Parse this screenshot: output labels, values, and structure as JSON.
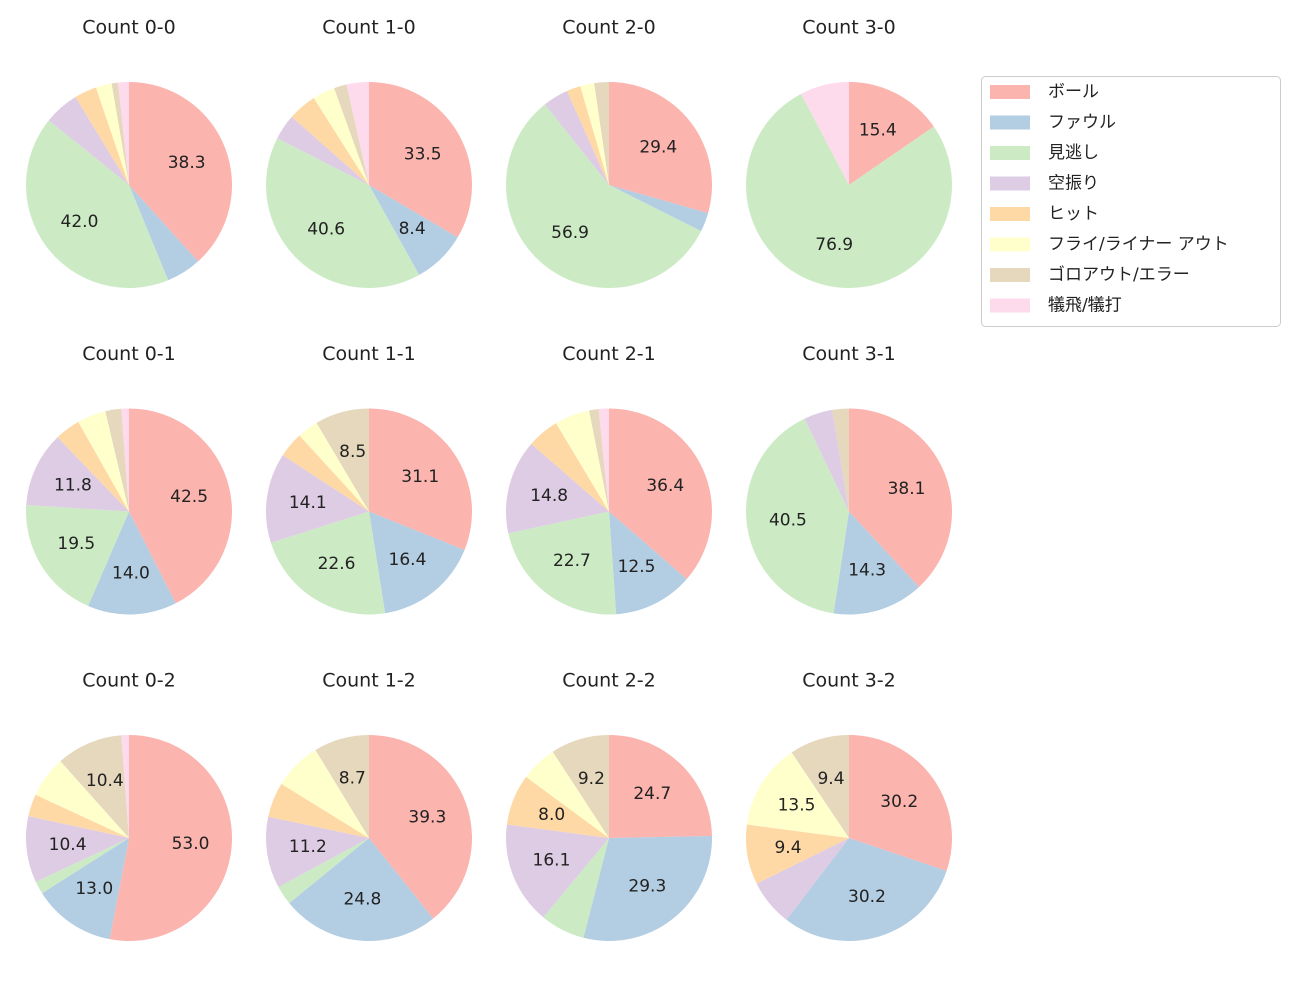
{
  "chart_data": [
    {
      "type": "pie",
      "title": "Count 0-0",
      "categories": [
        "ボール",
        "ファウル",
        "見逃し",
        "空振り",
        "ヒット",
        "フライ/ライナー アウト",
        "ゴロアウト/エラー",
        "犠飛/犠打"
      ],
      "colors": [
        "#fbb4ae",
        "#b3cde3",
        "#ccebc5",
        "#decbe4",
        "#fed9a6",
        "#ffffcc",
        "#e5d8bd",
        "#fddaec"
      ],
      "values": [
        38.3,
        5.5,
        42.0,
        5.5,
        3.5,
        2.5,
        1,
        1.7
      ],
      "value_labels": [
        "38.3",
        null,
        "42.0",
        null,
        null,
        null,
        null,
        null
      ]
    },
    {
      "type": "pie",
      "title": "Count 1-0",
      "categories": [
        "ボール",
        "ファウル",
        "見逃し",
        "空振り",
        "ヒット",
        "フライ/ライナー アウト",
        "ゴロアウト/エラー",
        "犠飛/犠打"
      ],
      "colors": [
        "#fbb4ae",
        "#b3cde3",
        "#ccebc5",
        "#decbe4",
        "#fed9a6",
        "#ffffcc",
        "#e5d8bd",
        "#fddaec"
      ],
      "values": [
        33.5,
        8.4,
        40.6,
        4,
        4.5,
        3.5,
        2,
        3.5
      ],
      "value_labels": [
        "33.5",
        "8.4",
        "40.6",
        null,
        null,
        null,
        null,
        null
      ]
    },
    {
      "type": "pie",
      "title": "Count 2-0",
      "categories": [
        "ボール",
        "ファウル",
        "見逃し",
        "空振り",
        "ヒット",
        "フライ/ライナー アウト",
        "ゴロアウト/エラー",
        "犠飛/犠打"
      ],
      "colors": [
        "#fbb4ae",
        "#b3cde3",
        "#ccebc5",
        "#decbe4",
        "#fed9a6",
        "#ffffcc",
        "#e5d8bd",
        "#fddaec"
      ],
      "values": [
        29.4,
        3,
        56.9,
        4,
        2.2,
        2.2,
        2.3,
        0
      ],
      "value_labels": [
        "29.4",
        null,
        "56.9",
        null,
        null,
        null,
        null,
        null
      ]
    },
    {
      "type": "pie",
      "title": "Count 3-0",
      "categories": [
        "ボール",
        "ファウル",
        "見逃し",
        "空振り",
        "ヒット",
        "フライ/ライナー アウト",
        "ゴロアウト/エラー",
        "犠飛/犠打"
      ],
      "colors": [
        "#fbb4ae",
        "#b3cde3",
        "#ccebc5",
        "#decbe4",
        "#fed9a6",
        "#ffffcc",
        "#e5d8bd",
        "#fddaec"
      ],
      "values": [
        15.4,
        0,
        76.9,
        0,
        0,
        0,
        0,
        7.7
      ],
      "value_labels": [
        "15.4",
        null,
        "76.9",
        null,
        null,
        null,
        null,
        null
      ]
    },
    {
      "type": "pie",
      "title": "Count 0-1",
      "categories": [
        "ボール",
        "ファウル",
        "見逃し",
        "空振り",
        "ヒット",
        "フライ/ライナー アウト",
        "ゴロアウト/エラー",
        "犠飛/犠打"
      ],
      "colors": [
        "#fbb4ae",
        "#b3cde3",
        "#ccebc5",
        "#decbe4",
        "#fed9a6",
        "#ffffcc",
        "#e5d8bd",
        "#fddaec"
      ],
      "values": [
        42.5,
        14.0,
        19.5,
        11.8,
        4,
        4.5,
        2.5,
        1.2
      ],
      "value_labels": [
        "42.5",
        "14.0",
        "19.5",
        "11.8",
        null,
        null,
        null,
        null
      ]
    },
    {
      "type": "pie",
      "title": "Count 1-1",
      "categories": [
        "ボール",
        "ファウル",
        "見逃し",
        "空振り",
        "ヒット",
        "フライ/ライナー アウト",
        "ゴロアウト/エラー",
        "犠飛/犠打"
      ],
      "colors": [
        "#fbb4ae",
        "#b3cde3",
        "#ccebc5",
        "#decbe4",
        "#fed9a6",
        "#ffffcc",
        "#e5d8bd",
        "#fddaec"
      ],
      "values": [
        31.1,
        16.4,
        22.6,
        14.1,
        4,
        3.3,
        8.5,
        0
      ],
      "value_labels": [
        "31.1",
        "16.4",
        "22.6",
        "14.1",
        null,
        null,
        "8.5",
        null
      ]
    },
    {
      "type": "pie",
      "title": "Count 2-1",
      "categories": [
        "ボール",
        "ファウル",
        "見逃し",
        "空振り",
        "ヒット",
        "フライ/ライナー アウト",
        "ゴロアウト/エラー",
        "犠飛/犠打"
      ],
      "colors": [
        "#fbb4ae",
        "#b3cde3",
        "#ccebc5",
        "#decbe4",
        "#fed9a6",
        "#ffffcc",
        "#e5d8bd",
        "#fddaec"
      ],
      "values": [
        36.4,
        12.5,
        22.7,
        14.8,
        5,
        5.5,
        1.5,
        1.6
      ],
      "value_labels": [
        "36.4",
        "12.5",
        "22.7",
        "14.8",
        null,
        null,
        null,
        null
      ]
    },
    {
      "type": "pie",
      "title": "Count 3-1",
      "categories": [
        "ボール",
        "ファウル",
        "見逃し",
        "空振り",
        "ヒット",
        "フライ/ライナー アウト",
        "ゴロアウト/エラー",
        "犠飛/犠打"
      ],
      "colors": [
        "#fbb4ae",
        "#b3cde3",
        "#ccebc5",
        "#decbe4",
        "#fed9a6",
        "#ffffcc",
        "#e5d8bd",
        "#fddaec"
      ],
      "values": [
        38.1,
        14.3,
        40.5,
        4.5,
        0,
        0,
        2.6,
        0
      ],
      "value_labels": [
        "38.1",
        "14.3",
        "40.5",
        null,
        null,
        null,
        null,
        null
      ]
    },
    {
      "type": "pie",
      "title": "Count 0-2",
      "categories": [
        "ボール",
        "ファウル",
        "見逃し",
        "空振り",
        "ヒット",
        "フライ/ライナー アウト",
        "ゴロアウト/エラー",
        "犠飛/犠打"
      ],
      "colors": [
        "#fbb4ae",
        "#b3cde3",
        "#ccebc5",
        "#decbe4",
        "#fed9a6",
        "#ffffcc",
        "#e5d8bd",
        "#fddaec"
      ],
      "values": [
        53.0,
        13.0,
        2,
        10.4,
        3.5,
        6.5,
        10.4,
        1.2
      ],
      "value_labels": [
        "53.0",
        "13.0",
        null,
        "10.4",
        null,
        null,
        "10.4",
        null
      ]
    },
    {
      "type": "pie",
      "title": "Count 1-2",
      "categories": [
        "ボール",
        "ファウル",
        "見逃し",
        "空振り",
        "ヒット",
        "フライ/ライナー アウト",
        "ゴロアウト/エラー",
        "犠飛/犠打"
      ],
      "colors": [
        "#fbb4ae",
        "#b3cde3",
        "#ccebc5",
        "#decbe4",
        "#fed9a6",
        "#ffffcc",
        "#e5d8bd",
        "#fddaec"
      ],
      "values": [
        39.3,
        24.8,
        3,
        11.2,
        5.5,
        7.5,
        8.7,
        0
      ],
      "value_labels": [
        "39.3",
        "24.8",
        null,
        "11.2",
        null,
        null,
        "8.7",
        null
      ]
    },
    {
      "type": "pie",
      "title": "Count 2-2",
      "categories": [
        "ボール",
        "ファウル",
        "見逃し",
        "空振り",
        "ヒット",
        "フライ/ライナー アウト",
        "ゴロアウト/エラー",
        "犠飛/犠打"
      ],
      "colors": [
        "#fbb4ae",
        "#b3cde3",
        "#ccebc5",
        "#decbe4",
        "#fed9a6",
        "#ffffcc",
        "#e5d8bd",
        "#fddaec"
      ],
      "values": [
        24.7,
        29.3,
        7,
        16.1,
        8.0,
        5.7,
        9.2,
        0
      ],
      "value_labels": [
        "24.7",
        "29.3",
        null,
        "16.1",
        "8.0",
        null,
        "9.2",
        null
      ]
    },
    {
      "type": "pie",
      "title": "Count 3-2",
      "categories": [
        "ボール",
        "ファウル",
        "見逃し",
        "空振り",
        "ヒット",
        "フライ/ライナー アウト",
        "ゴロアウト/エラー",
        "犠飛/犠打"
      ],
      "colors": [
        "#fbb4ae",
        "#b3cde3",
        "#ccebc5",
        "#decbe4",
        "#fed9a6",
        "#ffffcc",
        "#e5d8bd",
        "#fddaec"
      ],
      "values": [
        30.2,
        30.2,
        0,
        7.3,
        9.4,
        13.5,
        9.4,
        0
      ],
      "value_labels": [
        "30.2",
        "30.2",
        null,
        null,
        "9.4",
        "13.5",
        "9.4",
        null
      ]
    }
  ]
}
